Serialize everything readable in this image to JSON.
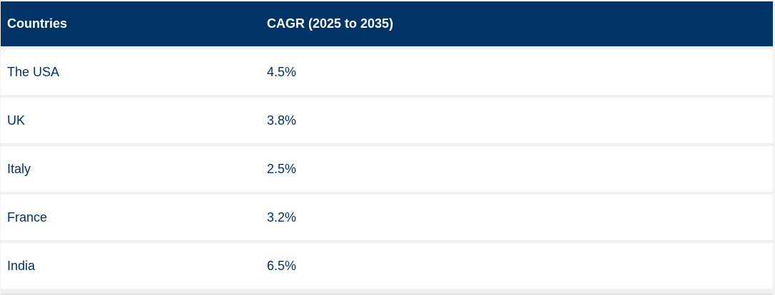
{
  "table": {
    "headers": {
      "country": "Countries",
      "cagr": "CAGR (2025 to 2035)"
    },
    "rows": [
      {
        "country": "The USA",
        "cagr": "4.5%"
      },
      {
        "country": "UK",
        "cagr": "3.8%"
      },
      {
        "country": "Italy",
        "cagr": "2.5%"
      },
      {
        "country": "France",
        "cagr": "3.2%"
      },
      {
        "country": "India",
        "cagr": "6.5%"
      }
    ]
  },
  "colors": {
    "header_bg": "#003366",
    "header_text": "#ffffff",
    "body_text": "#003366",
    "row_bg": "#ffffff",
    "separator": "#f0f0f0"
  }
}
